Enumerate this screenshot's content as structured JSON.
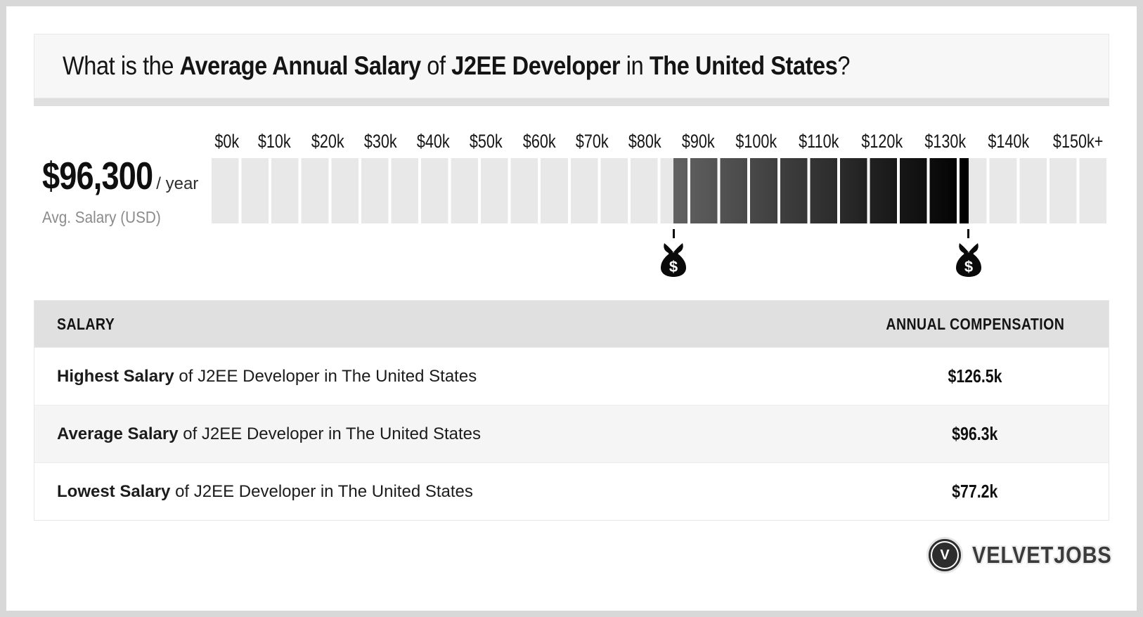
{
  "title": {
    "lead": "What is the ",
    "bold1": "Average Annual Salary",
    "sep1": " of ",
    "bold2": "J2EE Developer",
    "sep2": " in ",
    "bold3": "The United States",
    "tail": "?"
  },
  "hero": {
    "amount": "$96,300",
    "per": "/ year",
    "caption": "Avg. Salary (USD)"
  },
  "chart_data": {
    "type": "bar",
    "title": "Average Annual Salary of J2EE Developer in The United States",
    "xlabel": "",
    "ylabel": "",
    "tick_labels": [
      "$0k",
      "$10k",
      "$20k",
      "$30k",
      "$40k",
      "$50k",
      "$60k",
      "$70k",
      "$80k",
      "$90k",
      "$100k",
      "$110k",
      "$120k",
      "$130k",
      "$140k",
      "$150k+"
    ],
    "tick_values_k": [
      0,
      10,
      20,
      30,
      40,
      50,
      60,
      70,
      80,
      90,
      100,
      110,
      120,
      130,
      140,
      150
    ],
    "xlim_k": [
      0,
      150
    ],
    "segment_step_k": 5,
    "highlight_range_k": {
      "low": 77.2,
      "high": 126.5
    },
    "average_k": 96.3,
    "units": "USD thousands per year",
    "legend_position": "none",
    "grid": false,
    "colors": {
      "track": "#e8e8e8",
      "range_start": "#626262",
      "range_end": "#000000",
      "marker": "#0a0a0a"
    }
  },
  "markers": {
    "bag_symbol": "$"
  },
  "table": {
    "headers": [
      "SALARY",
      "ANNUAL COMPENSATION"
    ],
    "rows": [
      {
        "bold": "Highest Salary",
        "rest": " of J2EE Developer in The United States",
        "value": "$126.5k"
      },
      {
        "bold": "Average Salary",
        "rest": " of J2EE Developer in The United States",
        "value": "$96.3k"
      },
      {
        "bold": "Lowest Salary",
        "rest": " of J2EE Developer in The United States",
        "value": "$77.2k"
      }
    ]
  },
  "footer": {
    "brand": "VELVETJOBS",
    "logo_letter": "V"
  }
}
